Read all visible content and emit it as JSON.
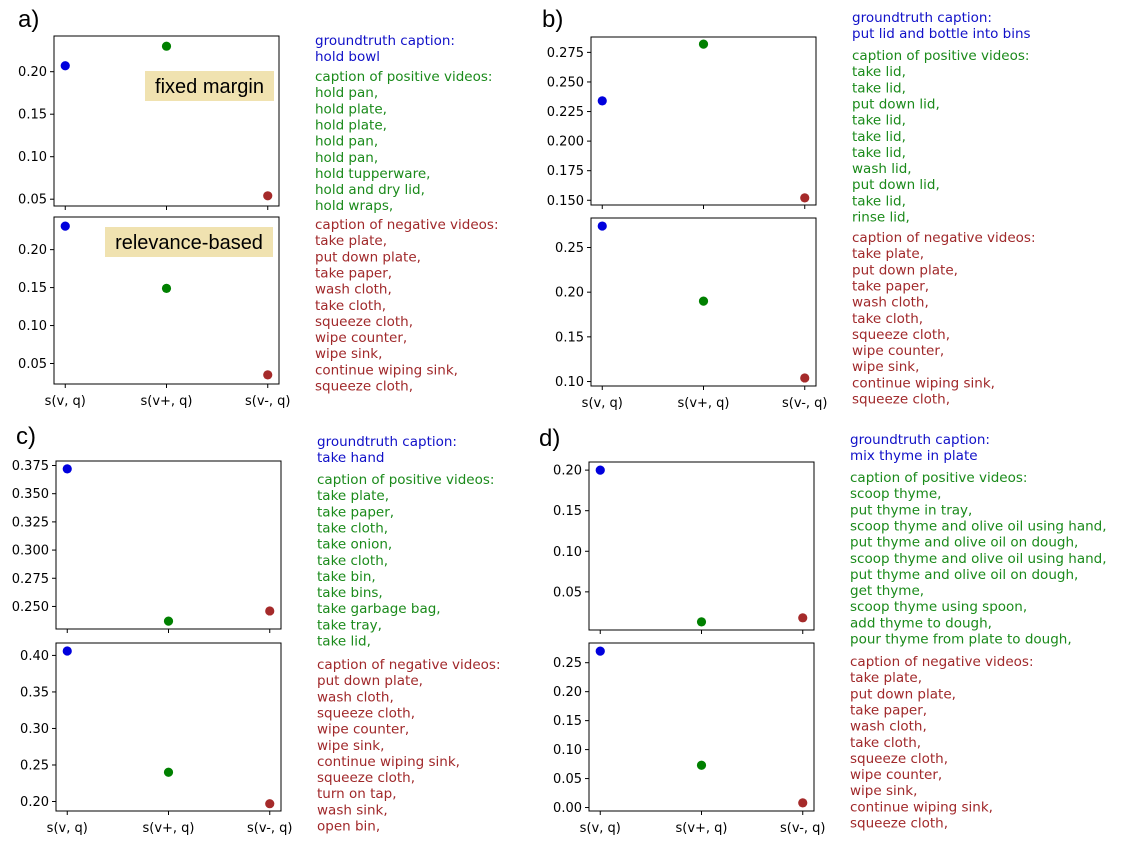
{
  "colors": {
    "groundtruth": "#1010c8",
    "positive": "#1a8a1a",
    "negative": "#a0282a",
    "point_anchor": "#0000dd",
    "point_pos": "#008000",
    "point_neg": "#a52a2a",
    "annotation_bg": "#f0e2b0"
  },
  "x_categories": [
    "s(v, q)",
    "s(v+, q)",
    "s(v-, q)"
  ],
  "chart_data": [
    {
      "panel": "a)",
      "type": "scatter",
      "annotation": "fixed margin",
      "categories": [
        "s(v, q)",
        "s(v+, q)",
        "s(v-, q)"
      ],
      "values": [
        0.207,
        0.23,
        0.054
      ],
      "ylim": [
        0.042,
        0.242
      ],
      "yticks": [
        0.05,
        0.1,
        0.15,
        0.2
      ],
      "ytick_labels": [
        "0.05",
        "0.10",
        "0.15",
        "0.20"
      ]
    },
    {
      "panel": "a)",
      "type": "scatter",
      "annotation": "relevance-based",
      "categories": [
        "s(v, q)",
        "s(v+, q)",
        "s(v-, q)"
      ],
      "values": [
        0.231,
        0.149,
        0.035
      ],
      "ylim": [
        0.023,
        0.243
      ],
      "yticks": [
        0.05,
        0.1,
        0.15,
        0.2
      ],
      "ytick_labels": [
        "0.05",
        "0.10",
        "0.15",
        "0.20"
      ]
    },
    {
      "panel": "b)",
      "type": "scatter",
      "categories": [
        "s(v, q)",
        "s(v+, q)",
        "s(v-, q)"
      ],
      "values": [
        0.234,
        0.282,
        0.152
      ],
      "ylim": [
        0.146,
        0.288
      ],
      "yticks": [
        0.15,
        0.175,
        0.2,
        0.225,
        0.25,
        0.275
      ],
      "ytick_labels": [
        "0.150",
        "0.175",
        "0.200",
        "0.225",
        "0.250",
        "0.275"
      ]
    },
    {
      "panel": "b)",
      "type": "scatter",
      "categories": [
        "s(v, q)",
        "s(v+, q)",
        "s(v-, q)"
      ],
      "values": [
        0.274,
        0.19,
        0.104
      ],
      "ylim": [
        0.095,
        0.283
      ],
      "yticks": [
        0.1,
        0.15,
        0.2,
        0.25
      ],
      "ytick_labels": [
        "0.10",
        "0.15",
        "0.20",
        "0.25"
      ]
    },
    {
      "panel": "c)",
      "type": "scatter",
      "categories": [
        "s(v, q)",
        "s(v+, q)",
        "s(v-, q)"
      ],
      "values": [
        0.372,
        0.237,
        0.246
      ],
      "ylim": [
        0.23,
        0.379
      ],
      "yticks": [
        0.25,
        0.275,
        0.3,
        0.325,
        0.35,
        0.375
      ],
      "ytick_labels": [
        "0.250",
        "0.275",
        "0.300",
        "0.325",
        "0.350",
        "0.375"
      ]
    },
    {
      "panel": "c)",
      "type": "scatter",
      "categories": [
        "s(v, q)",
        "s(v+, q)",
        "s(v-, q)"
      ],
      "values": [
        0.406,
        0.24,
        0.197
      ],
      "ylim": [
        0.187,
        0.417
      ],
      "yticks": [
        0.2,
        0.25,
        0.3,
        0.35,
        0.4
      ],
      "ytick_labels": [
        "0.20",
        "0.25",
        "0.30",
        "0.35",
        "0.40"
      ]
    },
    {
      "panel": "d)",
      "type": "scatter",
      "categories": [
        "s(v, q)",
        "s(v+, q)",
        "s(v-, q)"
      ],
      "values": [
        0.2,
        0.013,
        0.018
      ],
      "ylim": [
        0.003,
        0.21
      ],
      "yticks": [
        0.05,
        0.1,
        0.15,
        0.2
      ],
      "ytick_labels": [
        "0.05",
        "0.10",
        "0.15",
        "0.20"
      ]
    },
    {
      "panel": "d)",
      "type": "scatter",
      "categories": [
        "s(v, q)",
        "s(v+, q)",
        "s(v-, q)"
      ],
      "values": [
        0.27,
        0.073,
        0.008
      ],
      "ylim": [
        -0.006,
        0.284
      ],
      "yticks": [
        0.0,
        0.05,
        0.1,
        0.15,
        0.2,
        0.25
      ],
      "ytick_labels": [
        "0.00",
        "0.05",
        "0.10",
        "0.15",
        "0.20",
        "0.25"
      ]
    }
  ],
  "captions": [
    {
      "panel": "a)",
      "gt_header": "groundtruth caption:",
      "gt_text": "hold bowl",
      "pos_header": "caption of positive videos:",
      "pos": [
        "hold pan,",
        "hold plate,",
        "hold plate,",
        "hold pan,",
        "hold pan,",
        "hold tupperware,",
        "hold and dry lid,",
        "hold wraps,"
      ],
      "neg_header": "caption of negative videos:",
      "neg": [
        "take plate,",
        "put down plate,",
        "take paper,",
        "wash cloth,",
        "take cloth,",
        "squeeze cloth,",
        "wipe counter,",
        "wipe sink,",
        "continue wiping sink,",
        "squeeze cloth,"
      ]
    },
    {
      "panel": "b)",
      "gt_header": "groundtruth caption:",
      "gt_text": "put lid and bottle into bins",
      "pos_header": "caption of positive videos:",
      "pos": [
        "take lid,",
        "take lid,",
        "put down lid,",
        "take lid,",
        "take lid,",
        "take lid,",
        "wash lid,",
        "put down lid,",
        "take lid,",
        "rinse lid,"
      ],
      "neg_header": "caption of negative videos:",
      "neg": [
        "take plate,",
        "put down plate,",
        "take paper,",
        "wash cloth,",
        "take cloth,",
        "squeeze cloth,",
        "wipe counter,",
        "wipe sink,",
        "continue wiping sink,",
        "squeeze cloth,"
      ]
    },
    {
      "panel": "c)",
      "gt_header": "groundtruth caption:",
      "gt_text": "take hand",
      "pos_header": "caption of positive videos:",
      "pos": [
        "take plate,",
        "take paper,",
        "take cloth,",
        "take onion,",
        "take cloth,",
        "take bin,",
        "take bins,",
        "take garbage bag,",
        "take tray,",
        "take lid,"
      ],
      "neg_header": "caption of negative videos:",
      "neg": [
        "put down plate,",
        "wash cloth,",
        "squeeze cloth,",
        "wipe counter,",
        "wipe sink,",
        "continue wiping sink,",
        "squeeze cloth,",
        "turn on tap,",
        "wash sink,",
        "open bin,"
      ]
    },
    {
      "panel": "d)",
      "gt_header": "groundtruth caption:",
      "gt_text": "mix thyme in plate",
      "pos_header": "caption of positive videos:",
      "pos": [
        "scoop thyme,",
        "put thyme in tray,",
        "scoop thyme and olive oil using hand,",
        "put thyme and olive oil on dough,",
        "scoop thyme and olive oil using hand,",
        "put thyme and olive oil on dough,",
        "get thyme,",
        "scoop thyme using spoon,",
        "add thyme to dough,",
        "pour thyme from plate to dough,"
      ],
      "neg_header": "caption of negative videos:",
      "neg": [
        "take plate,",
        "put down plate,",
        "take paper,",
        "wash cloth,",
        "take cloth,",
        "squeeze cloth,",
        "wipe counter,",
        "wipe sink,",
        "continue wiping sink,",
        "squeeze cloth,"
      ]
    }
  ]
}
